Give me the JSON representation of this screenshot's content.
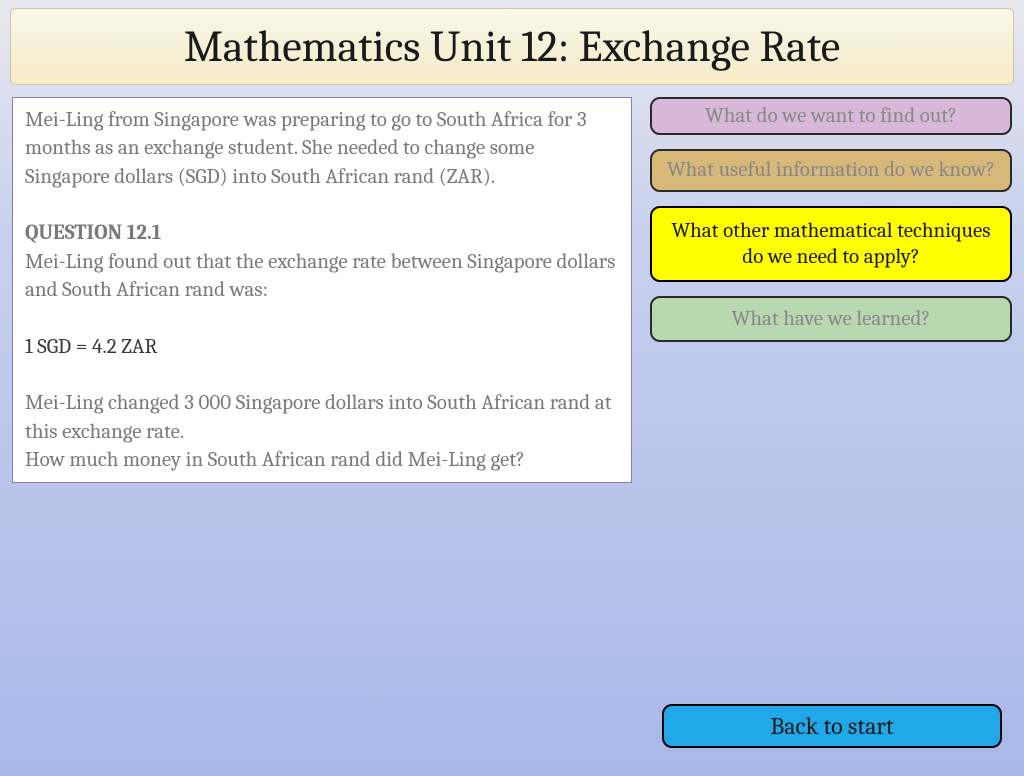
{
  "title": "Mathematics Unit 12: Exchange Rate",
  "question": {
    "intro": "Mei-Ling from Singapore was preparing to go to South Africa for 3 months as an exchange student.  She needed to change some Singapore dollars (SGD) into South African rand (ZAR).",
    "heading": "QUESTION 12.1",
    "line1": "Mei-Ling found out that the exchange rate between Singapore dollars and South African rand was:",
    "rate": "1 SGD = 4.2 ZAR",
    "line2": "Mei-Ling changed 3 000 Singapore dollars into South African rand at this exchange rate.",
    "line3": "How much money in South African rand did Mei-Ling get?"
  },
  "sideButtons": {
    "findOut": "What do we want to find out?",
    "useful": "What useful information do we know?",
    "techniques": "What other mathematical techniques do we need to apply?",
    "learned": "What have we learned?"
  },
  "backButton": "Back to start",
  "colors": {
    "pink": "#d8b8d8",
    "tan": "#d8b878",
    "yellow": "#ffff00",
    "green": "#b8d8b0",
    "blue": "#20a8e8"
  }
}
